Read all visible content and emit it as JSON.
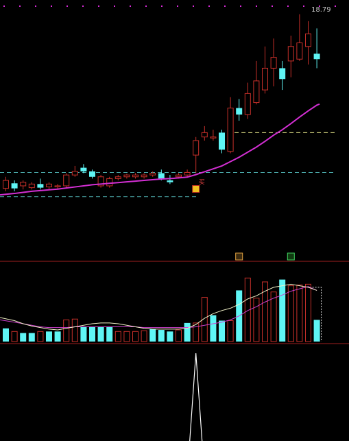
{
  "colors": {
    "background": "#000000",
    "up": "#c8302a",
    "down": "#5ff5f5",
    "ma": "#d42fd4",
    "dash_yellow": "#e6e68a",
    "dash_cyan": "#4aa8a8",
    "dots": "#d82ad8",
    "vol_ma_white": "#f2f2c8",
    "vol_ma_magenta": "#d040d0",
    "spike": "#ffffff"
  },
  "chart_data": [
    {
      "type": "candlestick",
      "ylim": [
        13.5,
        18.9
      ],
      "labels": {
        "high_price": "18.79",
        "buy_marker": "买"
      },
      "open": [
        13.98,
        14.12,
        14.05,
        14.0,
        14.1,
        14.02,
        14.05,
        14.05,
        14.35,
        14.55,
        14.45,
        14.05,
        14.05,
        14.25,
        14.3,
        14.3,
        14.3,
        14.35,
        14.4,
        14.2,
        14.3,
        14.35,
        14.9,
        15.4,
        15.4,
        15.52,
        15.0,
        16.2,
        16.02,
        16.35,
        16.7,
        17.3,
        17.3,
        17.5,
        17.55,
        17.9,
        17.7
      ],
      "close": [
        14.2,
        13.98,
        14.15,
        14.1,
        14.0,
        14.1,
        14.05,
        14.35,
        14.45,
        14.45,
        14.3,
        14.3,
        14.25,
        14.3,
        14.35,
        14.35,
        14.35,
        14.4,
        14.25,
        14.15,
        14.35,
        14.42,
        15.3,
        15.52,
        15.4,
        15.05,
        16.2,
        16.02,
        16.6,
        16.95,
        17.3,
        17.6,
        17.0,
        17.9,
        18.0,
        18.25,
        17.55
      ],
      "high": [
        14.3,
        14.2,
        14.2,
        14.15,
        14.25,
        14.15,
        14.1,
        14.4,
        14.6,
        14.65,
        14.5,
        14.35,
        14.3,
        14.35,
        14.38,
        14.4,
        14.4,
        14.45,
        14.5,
        14.35,
        14.4,
        14.5,
        15.4,
        15.7,
        15.6,
        15.6,
        16.5,
        16.45,
        16.9,
        17.5,
        17.9,
        18.12,
        17.5,
        18.2,
        18.79,
        18.6,
        18.4
      ],
      "low": [
        13.9,
        13.9,
        13.95,
        13.95,
        13.95,
        13.95,
        13.95,
        14.0,
        14.3,
        14.4,
        14.25,
        14.0,
        14.0,
        14.2,
        14.25,
        14.25,
        14.25,
        14.3,
        14.2,
        14.1,
        14.25,
        14.3,
        14.4,
        15.3,
        15.3,
        14.95,
        14.95,
        15.85,
        15.9,
        16.3,
        16.6,
        16.8,
        16.7,
        17.05,
        17.5,
        17.4,
        17.3
      ],
      "ma": [
        13.8,
        13.84,
        13.87,
        13.9,
        13.92,
        13.94,
        13.96,
        13.99,
        14.02,
        14.05,
        14.08,
        14.1,
        14.12,
        14.14,
        14.16,
        14.18,
        14.2,
        14.22,
        14.24,
        14.25,
        14.27,
        14.29,
        14.36,
        14.44,
        14.52,
        14.6,
        14.72,
        14.84,
        14.98,
        15.12,
        15.28,
        15.45,
        15.6,
        15.77,
        15.95,
        16.12,
        16.28
      ],
      "ref_lines": [
        15.52,
        14.42,
        13.75
      ],
      "buy_index": 22
    },
    {
      "type": "bar",
      "ylim": [
        0,
        100
      ],
      "up": [
        0,
        1,
        0,
        0,
        1,
        0,
        0,
        1,
        1,
        0,
        0,
        0,
        0,
        1,
        1,
        1,
        1,
        0,
        0,
        0,
        1,
        0,
        1,
        1,
        0,
        0,
        1,
        0,
        1,
        1,
        1,
        1,
        0,
        1,
        1,
        1,
        0
      ],
      "values": [
        17,
        13,
        11,
        11,
        13,
        13,
        13,
        28,
        29,
        19,
        19,
        19,
        19,
        13,
        13,
        13,
        14,
        16,
        15,
        13,
        15,
        24,
        24,
        57,
        34,
        27,
        27,
        66,
        82,
        56,
        77,
        64,
        80,
        72,
        73,
        74,
        28
      ],
      "ma_white": [
        31,
        27,
        23,
        20,
        18,
        16,
        15,
        17,
        19,
        21,
        23,
        24,
        24,
        23,
        21,
        19,
        17,
        16,
        16,
        16,
        16,
        17,
        22,
        30,
        36,
        40,
        43,
        48,
        55,
        59,
        65,
        70,
        72,
        74,
        72,
        70,
        66
      ],
      "ma_magenta": [
        28,
        25,
        23,
        21,
        19,
        18,
        18,
        18,
        19,
        19,
        19,
        19,
        19,
        19,
        19,
        19,
        18,
        18,
        18,
        18,
        18,
        18,
        19,
        21,
        23,
        25,
        28,
        33,
        40,
        45,
        51,
        56,
        60,
        65,
        68,
        71,
        66
      ]
    },
    {
      "type": "line",
      "ylim": [
        0,
        100
      ],
      "values": [
        0,
        0,
        0,
        0,
        0,
        0,
        0,
        0,
        0,
        0,
        0,
        0,
        0,
        0,
        0,
        0,
        0,
        0,
        0,
        0,
        0,
        0,
        100,
        0,
        0,
        0,
        0,
        0,
        0,
        0,
        0,
        0,
        0,
        0,
        0,
        0,
        0
      ]
    }
  ]
}
